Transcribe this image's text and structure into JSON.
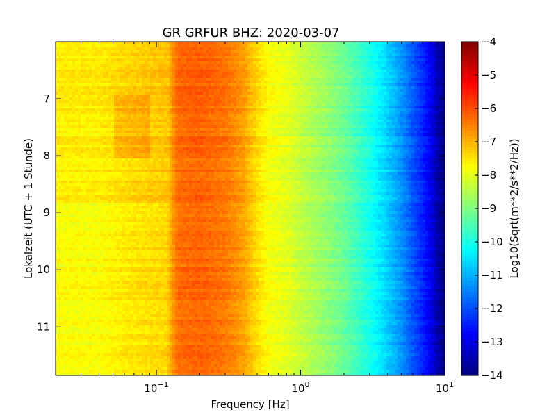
{
  "chart_data": {
    "type": "heatmap",
    "title": "GR GRFUR BHZ: 2020-03-07",
    "xlabel": "Frequency [Hz]",
    "ylabel": "Lokalzeit (UTC + 1 Stunde)",
    "x_scale": "log",
    "xlim": [
      0.02,
      10
    ],
    "x_ticks": [
      {
        "value": 0.1,
        "base": "10",
        "exp": "−1"
      },
      {
        "value": 1,
        "base": "10",
        "exp": "0"
      },
      {
        "value": 10,
        "base": "10",
        "exp": "1"
      }
    ],
    "ylim": [
      6.0,
      11.85
    ],
    "y_inverted": true,
    "y_ticks": [
      7,
      8,
      9,
      10,
      11
    ],
    "colorbar": {
      "label": "Log10(Sqrt(m**2/s**2/Hz))",
      "range": [
        -14,
        -4
      ],
      "ticks": [
        -4,
        -5,
        -6,
        -7,
        -8,
        -9,
        -10,
        -11,
        -12,
        -13,
        -14
      ],
      "tick_labels": [
        "−4",
        "−5",
        "−6",
        "−7",
        "−8",
        "−9",
        "−10",
        "−11",
        "−12",
        "−13",
        "−14"
      ],
      "colormap": "jet"
    },
    "spectrum_profile": {
      "frequency_hz": [
        0.02,
        0.04,
        0.06,
        0.08,
        0.12,
        0.14,
        0.2,
        0.3,
        0.4,
        0.5,
        0.6,
        0.8,
        1.0,
        1.5,
        2.0,
        3.0,
        4.0,
        5.0,
        6.0,
        7.0,
        8.0,
        9.0,
        10.0
      ],
      "value": [
        -7.6,
        -7.6,
        -7.4,
        -7.3,
        -7.2,
        -6.3,
        -6.2,
        -6.4,
        -6.8,
        -7.4,
        -7.8,
        -8.0,
        -8.3,
        -8.8,
        -9.2,
        -10.0,
        -10.7,
        -11.3,
        -11.9,
        -12.4,
        -12.9,
        -13.6,
        -13.9
      ]
    }
  }
}
